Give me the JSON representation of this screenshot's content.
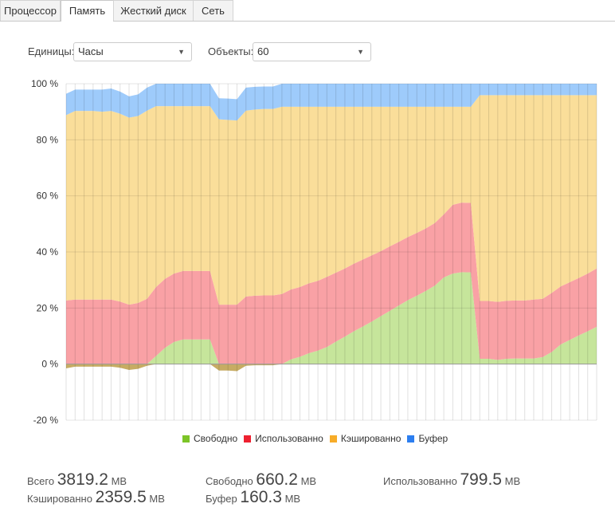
{
  "tabs": [
    {
      "label": "Процессор"
    },
    {
      "label": "Память",
      "active": true
    },
    {
      "label": "Жесткий диск"
    },
    {
      "label": "Сеть"
    }
  ],
  "controls": {
    "units_label": "Единицы:",
    "units_value": "Часы",
    "objects_label": "Объекты:",
    "objects_value": "60"
  },
  "chart_data": {
    "type": "area",
    "stacked": true,
    "ylim": [
      -20,
      100
    ],
    "yticks": [
      "100 %",
      "80 %",
      "60 %",
      "40 %",
      "20 %",
      "0 %",
      "-20 %"
    ],
    "ytick_values": [
      100,
      80,
      60,
      40,
      20,
      0,
      -20
    ],
    "points": 60,
    "legend_placement": "bottom",
    "series": [
      {
        "name": "Свободно",
        "color": "#7cc427",
        "fill": "#c6e59b",
        "neg_fill": "#c7ac63",
        "values": [
          -1.5,
          -0.9,
          -0.9,
          -0.9,
          -0.9,
          -0.9,
          -1.3,
          -2.1,
          -1.7,
          -0.6,
          2.9,
          5.8,
          7.9,
          8.8,
          8.8,
          8.8,
          8.8,
          -2.3,
          -2.3,
          -2.5,
          -0.6,
          -0.4,
          -0.4,
          -0.4,
          0,
          1.7,
          2.6,
          3.9,
          4.8,
          6.1,
          8.0,
          9.8,
          11.7,
          13.4,
          15.2,
          17.1,
          19.0,
          20.9,
          22.8,
          24.4,
          26.1,
          28.0,
          30.9,
          32.3,
          32.8,
          32.7,
          1.9,
          1.9,
          1.5,
          1.9,
          2.0,
          2.0,
          2.0,
          2.5,
          4.3,
          7.0,
          8.6,
          10.2,
          11.7,
          13.3
        ]
      },
      {
        "name": "Использованно",
        "color": "#ee2030",
        "fill": "#f9a1a5",
        "values": [
          22.7,
          23,
          23,
          23,
          23,
          23,
          22.3,
          21.2,
          21.8,
          23.3,
          24.6,
          24.6,
          24.4,
          24.4,
          24.4,
          24.4,
          24.4,
          21.2,
          21.2,
          21.2,
          24.1,
          24.4,
          24.5,
          24.5,
          25.0,
          24.9,
          24.9,
          24.9,
          24.9,
          25.0,
          24.6,
          24.3,
          24.1,
          23.9,
          23.6,
          23.2,
          23.0,
          22.7,
          22.5,
          22.4,
          22.3,
          22.3,
          22.5,
          24.5,
          24.8,
          24.8,
          20.6,
          20.6,
          20.7,
          20.7,
          20.7,
          20.7,
          21.0,
          20.8,
          21.1,
          20.7,
          20.6,
          20.5,
          20.6,
          20.8
        ]
      },
      {
        "name": "Кэшированно",
        "color": "#f7ac28",
        "fill": "#fade9a",
        "values": [
          66.1,
          67.3,
          67.3,
          67.3,
          67.0,
          67.3,
          67.0,
          66.7,
          66.7,
          67.1,
          64.5,
          61.6,
          59.7,
          58.8,
          58.8,
          58.8,
          58.8,
          66.1,
          65.9,
          65.7,
          66.3,
          66.4,
          66.5,
          66.5,
          66.8,
          65.2,
          64.3,
          63.0,
          62.1,
          60.7,
          59.2,
          57.7,
          56.0,
          54.5,
          53.0,
          51.5,
          49.8,
          48.2,
          46.5,
          45.0,
          43.4,
          41.5,
          38.4,
          35.0,
          34.2,
          34.3,
          73.4,
          73.4,
          73.7,
          73.3,
          73.2,
          73.2,
          72.9,
          72.6,
          70.5,
          68.2,
          66.7,
          65.2,
          63.6,
          61.8
        ]
      },
      {
        "name": "Буфер",
        "color": "#2c7ef0",
        "fill": "#9ecbfb",
        "values": [
          7.6,
          7.6,
          7.6,
          7.6,
          7.9,
          8.0,
          7.9,
          7.6,
          7.7,
          8.2,
          8,
          8,
          8,
          8,
          8,
          8,
          8,
          7.5,
          7.6,
          7.6,
          8.2,
          8.1,
          8.0,
          8.0,
          8.2,
          8.2,
          8.2,
          8.2,
          8.2,
          8.2,
          8.2,
          8.2,
          8.2,
          8.2,
          8.2,
          8.2,
          8.2,
          8.2,
          8.2,
          8.2,
          8.2,
          8.2,
          8.2,
          8.2,
          8.2,
          8.2,
          4.1,
          4.1,
          4.1,
          4.1,
          4.1,
          4.1,
          4.1,
          4.1,
          4.1,
          4.1,
          4.1,
          4.1,
          4.1,
          4.1
        ]
      }
    ]
  },
  "stats": {
    "total": {
      "label": "Всего",
      "value": "3819.2",
      "unit": "MB"
    },
    "free": {
      "label": "Свободно",
      "value": "660.2",
      "unit": "MB"
    },
    "used": {
      "label": "Использованно",
      "value": "799.5",
      "unit": "MB"
    },
    "cached": {
      "label": "Кэшированно",
      "value": "2359.5",
      "unit": "MB"
    },
    "buffer": {
      "label": "Буфер",
      "value": "160.3",
      "unit": "MB"
    }
  }
}
